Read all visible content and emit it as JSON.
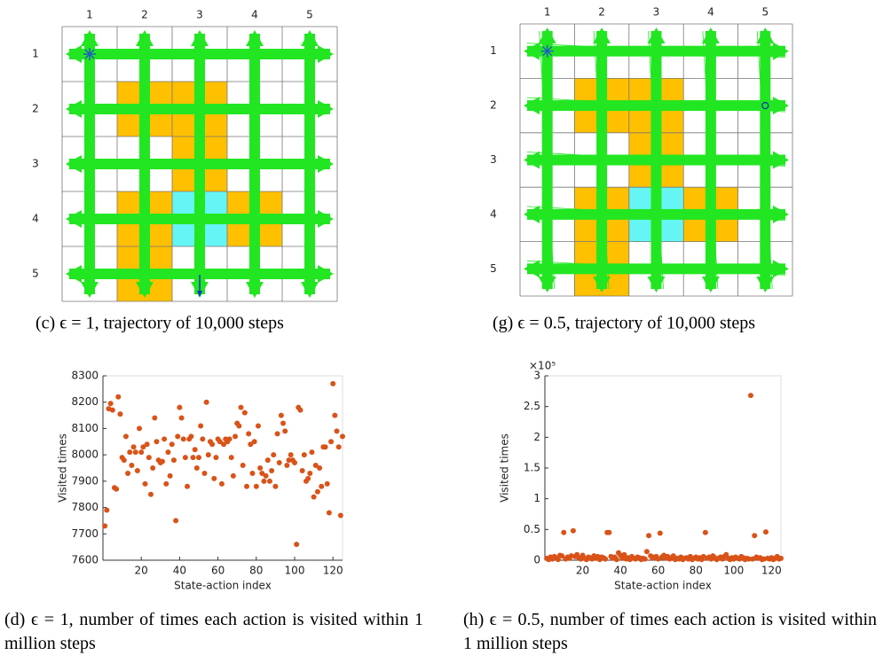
{
  "panels": [
    {
      "caption": "(c) ϵ = 1, trajectory of 10,000 steps",
      "col_labels": [
        "1",
        "2",
        "3",
        "4",
        "5"
      ],
      "row_labels": [
        "1",
        "2",
        "3",
        "4",
        "5"
      ]
    },
    {
      "caption": "(g) ϵ = 0.5, trajectory of 10,000 steps",
      "col_labels": [
        "1",
        "2",
        "3",
        "4",
        "5"
      ],
      "row_labels": [
        "1",
        "2",
        "3",
        "4",
        "5"
      ]
    }
  ],
  "chart_data": [
    {
      "type": "scatter",
      "caption": "(d) ϵ = 1, number of times each action is visited within 1 million steps",
      "xlabel": "State-action index",
      "ylabel": "Visited times",
      "color": "#d95319",
      "xlim": [
        0,
        125
      ],
      "ylim": [
        7600,
        8300
      ],
      "xticks": [
        20,
        40,
        60,
        80,
        100,
        120
      ],
      "yticks": [
        7600,
        7700,
        7800,
        7900,
        8000,
        8100,
        8200,
        8300
      ],
      "x": [
        1,
        2,
        3,
        4,
        5,
        6,
        7,
        8,
        9,
        10,
        11,
        12,
        13,
        14,
        15,
        16,
        17,
        18,
        19,
        20,
        21,
        22,
        23,
        24,
        25,
        26,
        27,
        28,
        29,
        30,
        31,
        32,
        33,
        34,
        35,
        36,
        37,
        38,
        39,
        40,
        41,
        42,
        43,
        44,
        45,
        46,
        47,
        48,
        49,
        50,
        51,
        52,
        53,
        54,
        55,
        56,
        57,
        58,
        59,
        60,
        61,
        62,
        63,
        64,
        65,
        66,
        67,
        68,
        69,
        70,
        71,
        72,
        73,
        74,
        75,
        76,
        77,
        78,
        79,
        80,
        81,
        82,
        83,
        84,
        85,
        86,
        87,
        88,
        89,
        90,
        91,
        92,
        93,
        94,
        95,
        96,
        97,
        98,
        99,
        100,
        101,
        102,
        103,
        104,
        105,
        106,
        107,
        108,
        109,
        110,
        111,
        112,
        113,
        114,
        115,
        116,
        117,
        118,
        119,
        120,
        121,
        122,
        123,
        124,
        125
      ],
      "values": [
        7730,
        7790,
        8175,
        8195,
        8170,
        7875,
        7870,
        8220,
        8155,
        7990,
        7980,
        8070,
        7930,
        8010,
        7960,
        8030,
        8010,
        7940,
        8100,
        8010,
        8030,
        7890,
        8040,
        7990,
        7850,
        7950,
        8140,
        8050,
        7980,
        7970,
        7975,
        8060,
        7890,
        8010,
        7920,
        8040,
        7980,
        7750,
        8070,
        8180,
        8140,
        8060,
        7990,
        7880,
        8060,
        8070,
        7990,
        8020,
        7950,
        7990,
        8110,
        8060,
        7930,
        8200,
        8000,
        8050,
        8040,
        7910,
        7990,
        8060,
        8050,
        7890,
        8040,
        8060,
        8050,
        8060,
        7990,
        7920,
        8070,
        8120,
        8110,
        8180,
        7960,
        8160,
        7880,
        8080,
        8040,
        7930,
        8050,
        7880,
        8110,
        7950,
        7930,
        7900,
        7920,
        7980,
        7900,
        7940,
        8000,
        7880,
        8080,
        7970,
        8150,
        8120,
        8090,
        7960,
        7980,
        8000,
        7980,
        7970,
        7660,
        8180,
        8170,
        7940,
        8000,
        7900,
        7910,
        7930,
        8010,
        7840,
        7960,
        7860,
        7950,
        7880,
        8030,
        8030,
        7890,
        7780,
        8050,
        8270,
        8150,
        8090,
        8030,
        7770,
        8070
      ]
    },
    {
      "type": "scatter",
      "caption": "(h) ϵ = 0.5, number of times each action is visited within 1 million steps",
      "xlabel": "State-action index",
      "ylabel": "Visited times",
      "color": "#d95319",
      "y_multiplier": "×10⁵",
      "xlim": [
        0,
        125
      ],
      "ylim": [
        0,
        300000
      ],
      "xticks": [
        20,
        40,
        60,
        80,
        100,
        120
      ],
      "yticks": [
        0,
        {
          "value": 50000,
          "label": "0.5"
        },
        {
          "value": 100000,
          "label": "1"
        },
        {
          "value": 150000,
          "label": "1.5"
        },
        {
          "value": 200000,
          "label": "2"
        },
        {
          "value": 250000,
          "label": "2.5"
        },
        {
          "value": 300000,
          "label": "3"
        }
      ],
      "x": [
        1,
        2,
        3,
        4,
        5,
        6,
        7,
        8,
        9,
        10,
        11,
        12,
        13,
        14,
        15,
        16,
        17,
        18,
        19,
        20,
        21,
        22,
        23,
        24,
        25,
        26,
        27,
        28,
        29,
        30,
        31,
        32,
        33,
        34,
        35,
        36,
        37,
        38,
        39,
        40,
        41,
        42,
        43,
        44,
        45,
        46,
        47,
        48,
        49,
        50,
        51,
        52,
        53,
        54,
        55,
        56,
        57,
        58,
        59,
        60,
        61,
        62,
        63,
        64,
        65,
        66,
        67,
        68,
        69,
        70,
        71,
        72,
        73,
        74,
        75,
        76,
        77,
        78,
        79,
        80,
        81,
        82,
        83,
        84,
        85,
        86,
        87,
        88,
        89,
        90,
        91,
        92,
        93,
        94,
        95,
        96,
        97,
        98,
        99,
        100,
        101,
        102,
        103,
        104,
        105,
        106,
        107,
        108,
        109,
        110,
        111,
        112,
        113,
        114,
        115,
        116,
        117,
        118,
        119,
        120,
        121,
        122,
        123,
        124,
        125
      ],
      "values": [
        3000,
        1000,
        5000,
        2000,
        6000,
        4000,
        1000,
        8000,
        7000,
        45000,
        2000,
        5000,
        3000,
        7000,
        48000,
        6000,
        9000,
        4000,
        2000,
        8000,
        3000,
        1000,
        5000,
        4000,
        2000,
        7000,
        3000,
        6000,
        1000,
        5000,
        4000,
        2000,
        45000,
        45000,
        6000,
        3000,
        5000,
        1000,
        12000,
        8000,
        3000,
        9000,
        2000,
        4000,
        1000,
        6000,
        3000,
        2000,
        5000,
        4000,
        1000,
        3000,
        2000,
        14000,
        40000,
        7000,
        3000,
        5000,
        6000,
        2000,
        44000,
        5000,
        8000,
        3000,
        6000,
        2000,
        4000,
        7000,
        1000,
        3000,
        2000,
        5000,
        1000,
        3000,
        4000,
        2000,
        6000,
        1000,
        3000,
        5000,
        2000,
        4000,
        1000,
        6000,
        45000,
        3000,
        5000,
        2000,
        7000,
        4000,
        1000,
        3000,
        5000,
        2000,
        6000,
        9000,
        3000,
        1000,
        4000,
        2000,
        5000,
        3000,
        2000,
        6000,
        4000,
        1000,
        3000,
        2000,
        268000,
        2000,
        40000,
        5000,
        3000,
        4000,
        1000,
        2000,
        46000,
        3000,
        2000,
        4000,
        1000,
        3000,
        6000,
        2000,
        3000
      ]
    }
  ]
}
